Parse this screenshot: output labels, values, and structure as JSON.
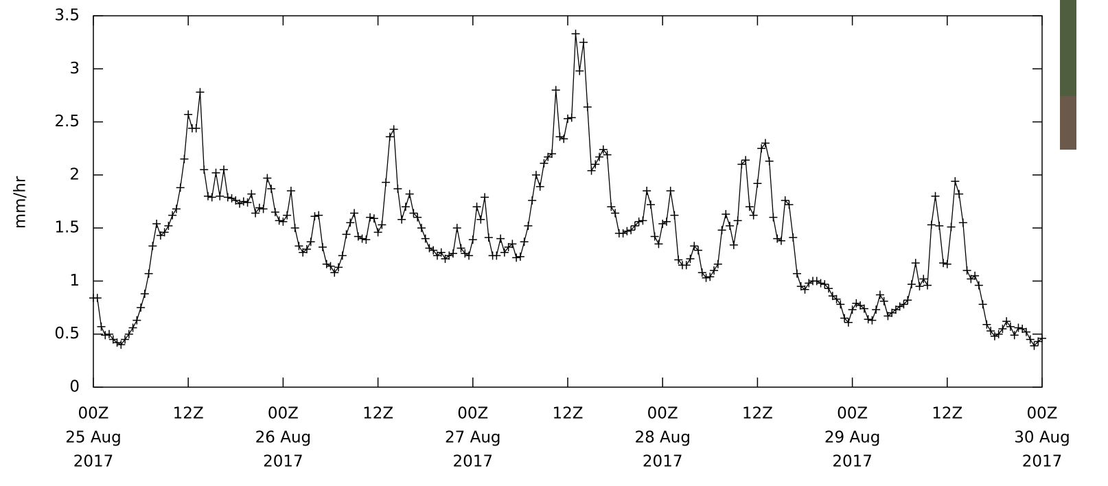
{
  "chart_data": {
    "type": "line",
    "ylabel": "mm/hr",
    "xlim": [
      0,
      120
    ],
    "ylim": [
      0,
      3.5
    ],
    "yticks": [
      0,
      0.5,
      1,
      1.5,
      2,
      2.5,
      3,
      3.5
    ],
    "xticks": [
      {
        "value": 0,
        "label": [
          "00Z",
          "25 Aug",
          "2017"
        ]
      },
      {
        "value": 12,
        "label": "12Z"
      },
      {
        "value": 24,
        "label": [
          "00Z",
          "26 Aug",
          "2017"
        ]
      },
      {
        "value": 36,
        "label": "12Z"
      },
      {
        "value": 48,
        "label": [
          "00Z",
          "27 Aug",
          "2017"
        ]
      },
      {
        "value": 60,
        "label": "12Z"
      },
      {
        "value": 72,
        "label": [
          "00Z",
          "28 Aug",
          "2017"
        ]
      },
      {
        "value": 84,
        "label": "12Z"
      },
      {
        "value": 96,
        "label": [
          "00Z",
          "29 Aug",
          "2017"
        ]
      },
      {
        "value": 108,
        "label": "12Z"
      },
      {
        "value": 120,
        "label": [
          "00Z",
          "30 Aug",
          "2017"
        ]
      }
    ],
    "x": [
      0,
      0.5,
      1,
      1.5,
      2,
      2.5,
      3,
      3.5,
      4,
      4.5,
      5,
      5.5,
      6,
      6.5,
      7,
      7.5,
      8,
      8.5,
      9,
      9.5,
      10,
      10.5,
      11,
      11.5,
      12,
      12.5,
      13,
      13.5,
      14,
      14.5,
      15,
      15.5,
      16,
      16.5,
      17,
      17.5,
      18,
      18.5,
      19,
      19.5,
      20,
      20.5,
      21,
      21.5,
      22,
      22.5,
      23,
      23.5,
      24,
      24.5,
      25,
      25.5,
      26,
      26.5,
      27,
      27.5,
      28,
      28.5,
      29,
      29.5,
      30,
      30.5,
      31,
      31.5,
      32,
      32.5,
      33,
      33.5,
      34,
      34.5,
      35,
      35.5,
      36,
      36.5,
      37,
      37.5,
      38,
      38.5,
      39,
      39.5,
      40,
      40.5,
      41,
      41.5,
      42,
      42.5,
      43,
      43.5,
      44,
      44.5,
      45,
      45.5,
      46,
      46.5,
      47,
      47.5,
      48,
      48.5,
      49,
      49.5,
      50,
      50.5,
      51,
      51.5,
      52,
      52.5,
      53,
      53.5,
      54,
      54.5,
      55,
      55.5,
      56,
      56.5,
      57,
      57.5,
      58,
      58.5,
      59,
      59.5,
      60,
      60.5,
      61,
      61.5,
      62,
      62.5,
      63,
      63.5,
      64,
      64.5,
      65,
      65.5,
      66,
      66.5,
      67,
      67.5,
      68,
      68.5,
      69,
      69.5,
      70,
      70.5,
      71,
      71.5,
      72,
      72.5,
      73,
      73.5,
      74,
      74.5,
      75,
      75.5,
      76,
      76.5,
      77,
      77.5,
      78,
      78.5,
      79,
      79.5,
      80,
      80.5,
      81,
      81.5,
      82,
      82.5,
      83,
      83.5,
      84,
      84.5,
      85,
      85.5,
      86,
      86.5,
      87,
      87.5,
      88,
      88.5,
      89,
      89.5,
      90,
      90.5,
      91,
      91.5,
      92,
      92.5,
      93,
      93.5,
      94,
      94.5,
      95,
      95.5,
      96,
      96.5,
      97,
      97.5,
      98,
      98.5,
      99,
      99.5,
      100,
      100.5,
      101,
      101.5,
      102,
      102.5,
      103,
      103.5,
      104,
      104.5,
      105,
      105.5,
      106,
      106.5,
      107,
      107.5,
      108,
      108.5,
      109,
      109.5,
      110,
      110.5,
      111,
      111.5,
      112,
      112.5,
      113,
      113.5,
      114,
      114.5,
      115,
      115.5,
      116,
      116.5,
      117,
      117.5,
      118,
      118.5,
      119,
      119.5,
      120
    ],
    "series": [
      {
        "color": "#000000",
        "values": [
          0.84,
          0.84,
          0.57,
          0.49,
          0.5,
          0.45,
          0.42,
          0.4,
          0.45,
          0.5,
          0.56,
          0.63,
          0.75,
          0.88,
          1.07,
          1.33,
          1.54,
          1.43,
          1.46,
          1.52,
          1.62,
          1.68,
          1.88,
          2.15,
          2.57,
          2.44,
          2.44,
          2.78,
          2.05,
          1.8,
          1.79,
          2.02,
          1.8,
          2.05,
          1.79,
          1.78,
          1.76,
          1.73,
          1.75,
          1.74,
          1.82,
          1.64,
          1.69,
          1.68,
          1.97,
          1.87,
          1.65,
          1.57,
          1.56,
          1.62,
          1.85,
          1.5,
          1.33,
          1.27,
          1.3,
          1.37,
          1.61,
          1.62,
          1.32,
          1.16,
          1.14,
          1.08,
          1.13,
          1.24,
          1.44,
          1.55,
          1.64,
          1.42,
          1.4,
          1.39,
          1.6,
          1.59,
          1.46,
          1.53,
          1.93,
          2.36,
          2.43,
          1.87,
          1.58,
          1.7,
          1.82,
          1.64,
          1.6,
          1.5,
          1.4,
          1.31,
          1.29,
          1.24,
          1.27,
          1.21,
          1.24,
          1.26,
          1.5,
          1.31,
          1.26,
          1.24,
          1.39,
          1.7,
          1.58,
          1.79,
          1.41,
          1.24,
          1.24,
          1.4,
          1.27,
          1.32,
          1.35,
          1.22,
          1.23,
          1.37,
          1.52,
          1.76,
          2.0,
          1.89,
          2.11,
          2.17,
          2.2,
          2.8,
          2.36,
          2.34,
          2.53,
          2.54,
          3.33,
          2.98,
          3.25,
          2.64,
          2.04,
          2.1,
          2.17,
          2.24,
          2.19,
          1.7,
          1.64,
          1.45,
          1.45,
          1.47,
          1.48,
          1.52,
          1.56,
          1.57,
          1.85,
          1.72,
          1.42,
          1.35,
          1.54,
          1.56,
          1.85,
          1.62,
          1.2,
          1.15,
          1.15,
          1.21,
          1.33,
          1.29,
          1.08,
          1.03,
          1.04,
          1.1,
          1.16,
          1.48,
          1.63,
          1.52,
          1.34,
          1.57,
          2.1,
          2.14,
          1.7,
          1.62,
          1.92,
          2.25,
          2.3,
          2.13,
          1.6,
          1.4,
          1.38,
          1.76,
          1.72,
          1.41,
          1.07,
          0.95,
          0.92,
          0.98,
          1.0,
          1.0,
          0.98,
          0.97,
          0.93,
          0.86,
          0.83,
          0.78,
          0.65,
          0.61,
          0.73,
          0.79,
          0.77,
          0.74,
          0.64,
          0.63,
          0.73,
          0.87,
          0.81,
          0.67,
          0.7,
          0.73,
          0.76,
          0.78,
          0.82,
          0.97,
          1.17,
          0.95,
          1.02,
          0.96,
          1.53,
          1.8,
          1.52,
          1.17,
          1.16,
          1.51,
          1.94,
          1.82,
          1.55,
          1.1,
          1.02,
          1.05,
          0.96,
          0.78,
          0.59,
          0.53,
          0.48,
          0.5,
          0.55,
          0.62,
          0.57,
          0.49,
          0.56,
          0.55,
          0.52,
          0.45,
          0.39,
          0.43,
          0.46
        ]
      }
    ]
  }
}
